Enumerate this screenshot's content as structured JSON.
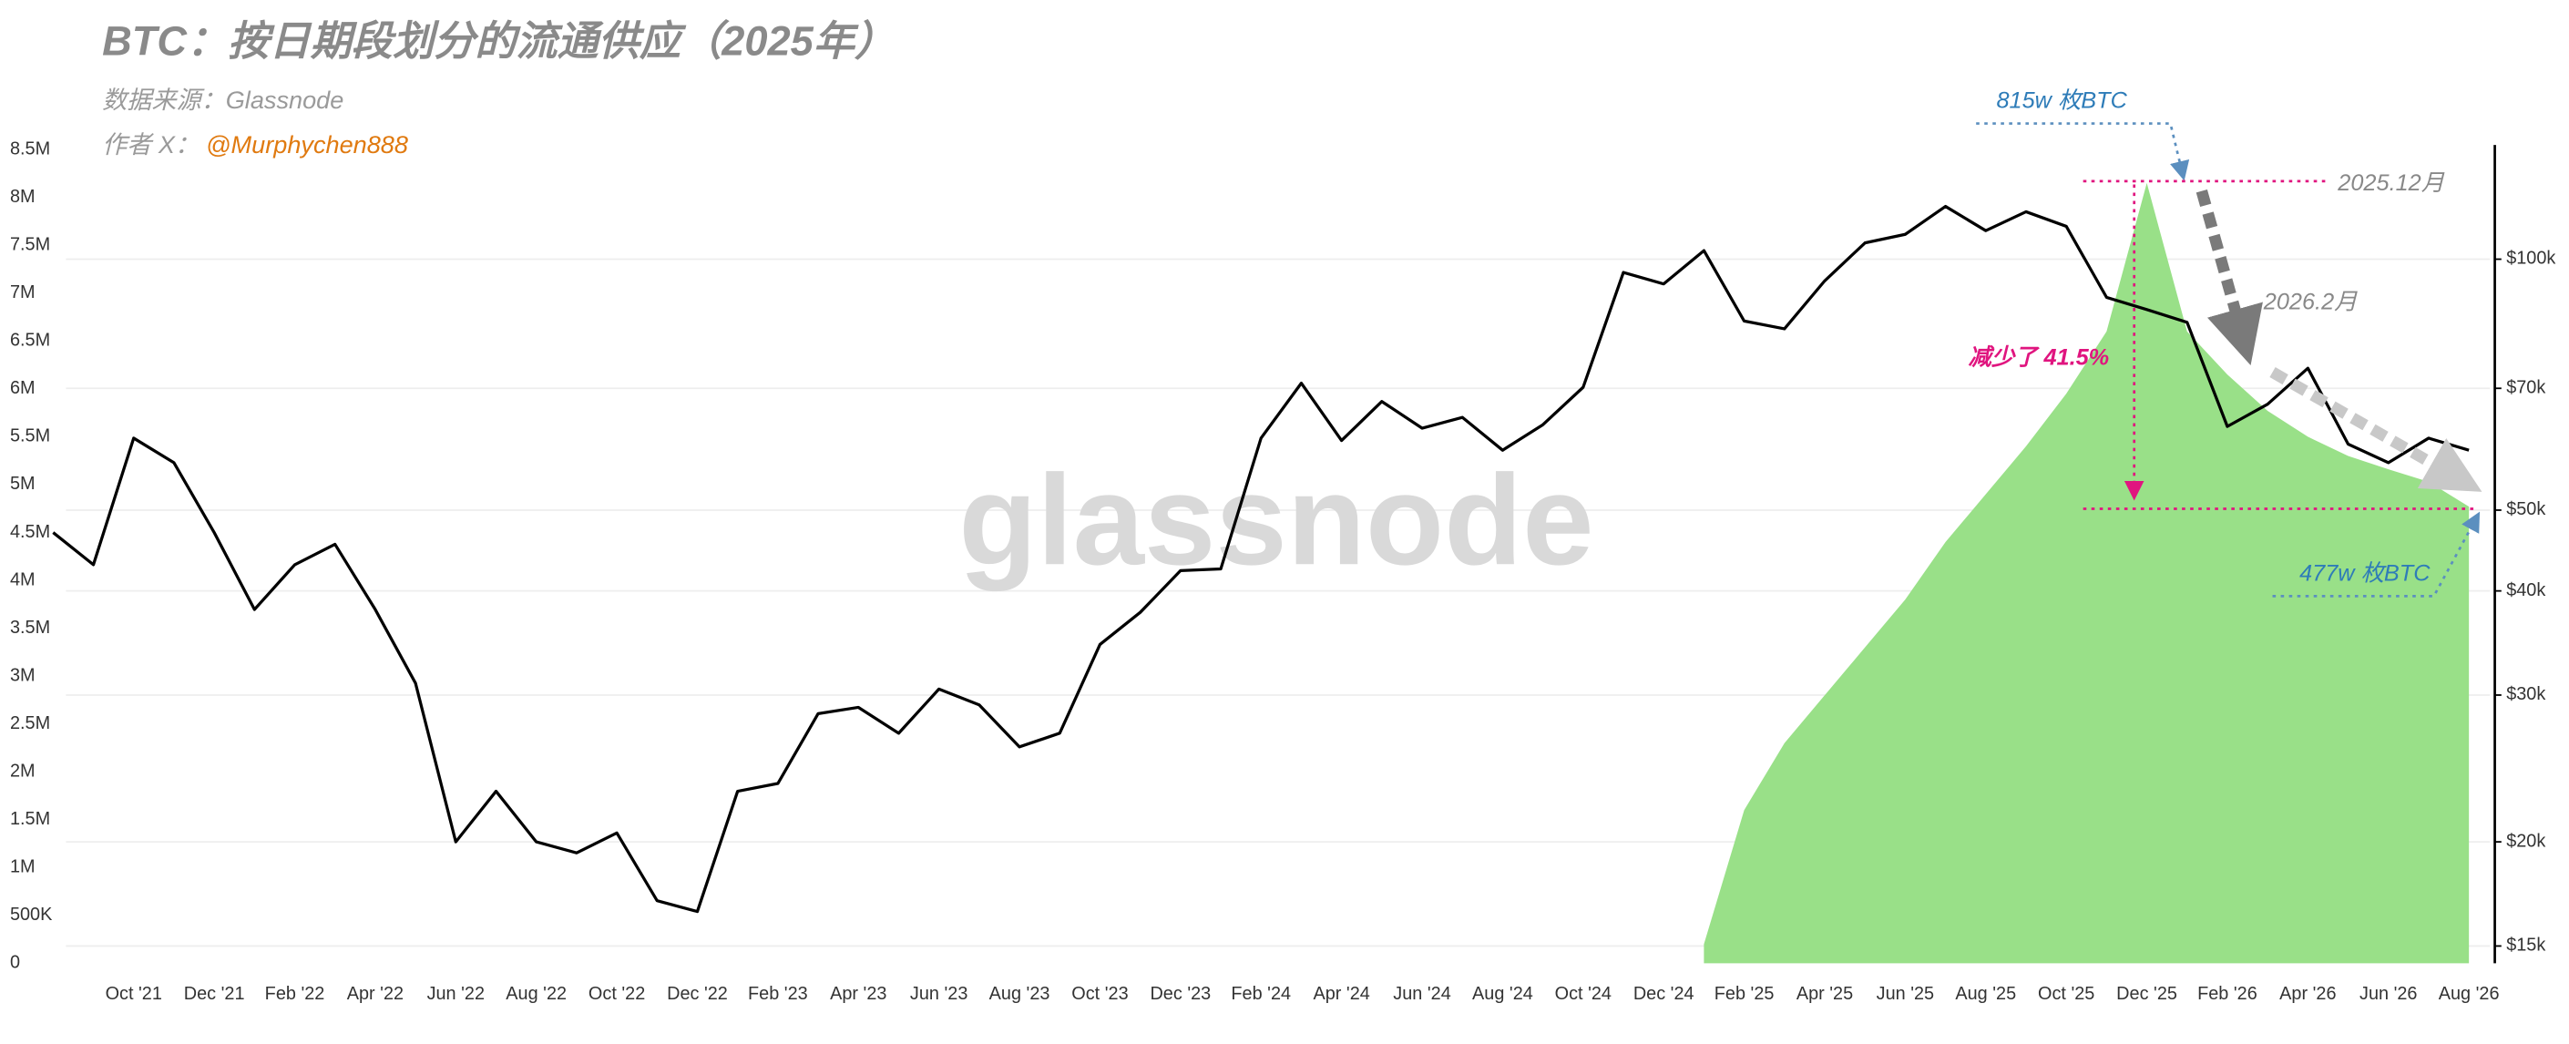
{
  "chart_data": {
    "type": "line",
    "title": "BTC：按日期段划分的流通供应（2025年）",
    "subtitle": "数据来源：Glassnode",
    "author_label": "作者 X：",
    "author": "@Murphychen888",
    "watermark": "glassnode",
    "categories": [
      null,
      null,
      "Oct '21",
      null,
      "Dec '21",
      null,
      "Feb '22",
      null,
      "Apr '22",
      null,
      "Jun '22",
      null,
      "Aug '22",
      null,
      "Oct '22",
      null,
      "Dec '22",
      null,
      "Feb '23",
      null,
      "Apr '23",
      null,
      "Jun '23",
      null,
      "Aug '23",
      null,
      "Oct '23",
      null,
      "Dec '23",
      null,
      "Feb '24",
      null,
      "Apr '24",
      null,
      "Jun '24",
      null,
      "Aug '24",
      null,
      "Oct '24",
      null,
      "Dec '24",
      null,
      "Feb '25",
      null,
      "Apr '25",
      null,
      "Jun '25",
      null,
      "Aug '25",
      null,
      "Oct '25",
      null,
      "Dec '25",
      null,
      "Feb '26",
      null,
      "Apr '26",
      null,
      "Jun '26",
      null,
      "Aug '26"
    ],
    "series": [
      {
        "type": "line",
        "axis": "y2",
        "color": "#000000",
        "values": [
          47000,
          43000,
          61000,
          57000,
          47000,
          38000,
          43000,
          45500,
          38000,
          31000,
          20000,
          23000,
          20000,
          19400,
          20500,
          17000,
          16500,
          23000,
          23500,
          28500,
          29000,
          27000,
          30500,
          29200,
          26000,
          27000,
          34500,
          37700,
          42300,
          42500,
          61000,
          71000,
          60600,
          67500,
          62700,
          64600,
          59000,
          63300,
          70200,
          96400,
          93400,
          102400,
          84300,
          82500,
          94200,
          104600,
          107100,
          115700,
          108200,
          114000,
          109500,
          90000,
          87000,
          84000,
          63000,
          67000,
          74000,
          60000,
          57000,
          61000,
          59000
        ]
      },
      {
        "type": "area",
        "color": "#99e088",
        "values": [
          null,
          null,
          null,
          null,
          null,
          null,
          null,
          null,
          null,
          null,
          null,
          null,
          null,
          null,
          null,
          null,
          null,
          null,
          null,
          null,
          null,
          null,
          null,
          null,
          null,
          null,
          null,
          null,
          null,
          null,
          null,
          null,
          null,
          null,
          null,
          null,
          null,
          null,
          null,
          null,
          null,
          200000,
          1600000,
          2300000,
          2800000,
          3300000,
          3800000,
          4400000,
          4900000,
          5400000,
          5950000,
          6600000,
          8150000,
          6600000,
          6150000,
          5770000,
          5500000,
          5300000,
          5160000,
          5030000,
          4770000
        ]
      }
    ],
    "ylim": [
      0,
      8600000
    ],
    "yticks": [
      {
        "value": 0,
        "label": "0"
      },
      {
        "value": 500000,
        "label": "500K"
      },
      {
        "value": 1000000,
        "label": "1M"
      },
      {
        "value": 1500000,
        "label": "1.5M"
      },
      {
        "value": 2000000,
        "label": "2M"
      },
      {
        "value": 2500000,
        "label": "2.5M"
      },
      {
        "value": 3000000,
        "label": "3M"
      },
      {
        "value": 3500000,
        "label": "3.5M"
      },
      {
        "value": 4000000,
        "label": "4M"
      },
      {
        "value": 4500000,
        "label": "4.5M"
      },
      {
        "value": 5000000,
        "label": "5M"
      },
      {
        "value": 5500000,
        "label": "5.5M"
      },
      {
        "value": 6000000,
        "label": "6M"
      },
      {
        "value": 6500000,
        "label": "6.5M"
      },
      {
        "value": 7000000,
        "label": "7M"
      },
      {
        "value": 7500000,
        "label": "7.5M"
      },
      {
        "value": 8000000,
        "label": "8M"
      },
      {
        "value": 8500000,
        "label": "8.5M"
      }
    ],
    "y2lim": [
      14300,
      139000
    ],
    "y2scale": "log",
    "y2ticks": [
      {
        "value": 15000,
        "label": "$15k"
      },
      {
        "value": 20000,
        "label": "$20k"
      },
      {
        "value": 30000,
        "label": "$30k"
      },
      {
        "value": 40000,
        "label": "$40k"
      },
      {
        "value": 50000,
        "label": "$50k"
      },
      {
        "value": 70000,
        "label": "$70k"
      },
      {
        "value": 100000,
        "label": "$100k"
      }
    ],
    "grid": true,
    "annotations": [
      {
        "text": "815w 枚BTC",
        "color": "#2e7cb8"
      },
      {
        "text": "2025.12月",
        "color": "#888888"
      },
      {
        "text": "2026.2月",
        "color": "#888888"
      },
      {
        "text": "减少了 41.5%",
        "color": "#e0157f"
      },
      {
        "text": "477w 枚BTC",
        "color": "#2e7cb8"
      }
    ]
  }
}
